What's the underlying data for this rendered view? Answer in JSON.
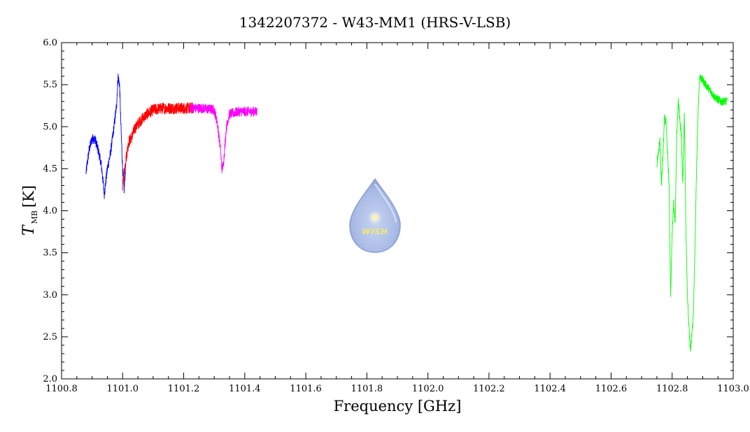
{
  "chart_data": {
    "type": "line",
    "title": "1342207372 - W43-MM1 (HRS-V-LSB)",
    "xlabel": "Frequency [GHz]",
    "ylabel": {
      "main": "T",
      "sub": "MB",
      "unit": "[K]"
    },
    "xlim": [
      1100.8,
      1103.0
    ],
    "ylim": [
      2.0,
      6.0
    ],
    "xticks": [
      "1100.8",
      "1101.0",
      "1101.2",
      "1101.4",
      "1101.6",
      "1101.8",
      "1102.0",
      "1102.2",
      "1102.4",
      "1102.6",
      "1102.8",
      "1103.0"
    ],
    "yticks": [
      "2.0",
      "2.5",
      "3.0",
      "3.5",
      "4.0",
      "4.5",
      "5.0",
      "5.5",
      "6.0"
    ],
    "grid": false,
    "logo": {
      "text": "WISH"
    },
    "series": [
      {
        "color": "#0000ff",
        "noise": 0.06,
        "x": [
          1100.88,
          1100.89,
          1100.9,
          1100.91,
          1100.92,
          1100.93,
          1100.935,
          1100.94,
          1100.95,
          1100.96,
          1100.97,
          1100.98,
          1100.985,
          1100.99,
          1100.995,
          1101.0,
          1101.005,
          1101.01
        ],
        "y": [
          4.45,
          4.72,
          4.86,
          4.85,
          4.72,
          4.55,
          4.38,
          4.2,
          4.5,
          4.68,
          4.95,
          5.25,
          5.6,
          5.5,
          4.95,
          4.5,
          4.25,
          4.55
        ]
      },
      {
        "color": "#ff0000",
        "noise": 0.07,
        "x": [
          1101.0,
          1101.01,
          1101.02,
          1101.03,
          1101.04,
          1101.06,
          1101.08,
          1101.1,
          1101.13,
          1101.16,
          1101.2,
          1101.23
        ],
        "y": [
          4.3,
          4.6,
          4.82,
          4.88,
          4.98,
          5.08,
          5.15,
          5.2,
          5.22,
          5.22,
          5.22,
          5.22
        ]
      },
      {
        "color": "#ff00ff",
        "noise": 0.06,
        "x": [
          1101.22,
          1101.26,
          1101.3,
          1101.31,
          1101.32,
          1101.325,
          1101.33,
          1101.34,
          1101.35,
          1101.38,
          1101.41,
          1101.44
        ],
        "y": [
          5.22,
          5.22,
          5.2,
          5.05,
          4.75,
          4.5,
          4.55,
          5.0,
          5.15,
          5.18,
          5.18,
          5.18
        ]
      },
      {
        "color": "#00ff00",
        "noise": 0.05,
        "x": [
          1102.75,
          1102.76,
          1102.765,
          1102.77,
          1102.775,
          1102.78,
          1102.79,
          1102.795,
          1102.8,
          1102.805,
          1102.81,
          1102.815,
          1102.82,
          1102.83,
          1102.835,
          1102.84,
          1102.845,
          1102.85,
          1102.855,
          1102.86,
          1102.865,
          1102.87,
          1102.875,
          1102.88,
          1102.885,
          1102.89,
          1102.9,
          1102.92,
          1102.94,
          1102.96,
          1102.98
        ],
        "y": [
          4.55,
          4.85,
          4.3,
          4.7,
          5.1,
          5.05,
          4.3,
          3.0,
          3.75,
          4.1,
          3.85,
          4.9,
          5.3,
          4.9,
          4.3,
          5.2,
          3.8,
          3.0,
          2.6,
          2.33,
          2.55,
          2.8,
          3.6,
          4.5,
          5.2,
          5.6,
          5.55,
          5.45,
          5.35,
          5.3,
          5.3
        ]
      }
    ]
  }
}
